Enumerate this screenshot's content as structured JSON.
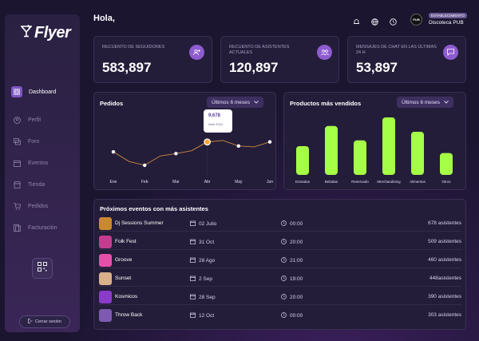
{
  "brand": {
    "name": "Flyer"
  },
  "header": {
    "greeting": "Hola,",
    "badge": "ESTABLECIMIENTO",
    "venue": "Discoteca PUB",
    "avatar_text": "PUB"
  },
  "sidebar": {
    "items": [
      {
        "label": "Dashboard",
        "icon": "grid-icon",
        "active": true
      },
      {
        "label": "Perfil",
        "icon": "user-icon",
        "active": false
      },
      {
        "label": "Foro",
        "icon": "chat-icon",
        "active": false
      },
      {
        "label": "Eventos",
        "icon": "calendar-icon",
        "active": false
      },
      {
        "label": "Tienda",
        "icon": "store-icon",
        "active": false
      },
      {
        "label": "Pedidos",
        "icon": "cart-icon",
        "active": false
      },
      {
        "label": "Facturación",
        "icon": "invoice-icon",
        "active": false
      }
    ],
    "logout": "Cerrar sesión"
  },
  "stats": [
    {
      "label": "Recuento de seguidores",
      "value": "583,897",
      "icon": "user-plus-icon"
    },
    {
      "label": "Recuento de asistentes actuales",
      "value": "120,897",
      "icon": "people-icon"
    },
    {
      "label": "Mensajes de chat en las últimas 24 h",
      "value": "53,897",
      "icon": "message-icon"
    }
  ],
  "orders": {
    "title": "Pedidos",
    "filter": "Últimos 6 meses",
    "tooltip_value": "9,678",
    "tooltip_month": "Abril 2024"
  },
  "products": {
    "title": "Productos más vendidos",
    "filter": "Últimos 6 meses"
  },
  "chart_data": [
    {
      "type": "line",
      "title": "Pedidos",
      "categories": [
        "Ene",
        "Feb",
        "Mar",
        "Abr",
        "May",
        "Jun"
      ],
      "series": [
        {
          "values": [
            0.45,
            0.22,
            0.42,
            0.62,
            0.55,
            0.62
          ]
        }
      ],
      "highlight": {
        "category": "Abr",
        "value": 9678
      },
      "grid": false
    },
    {
      "type": "bar",
      "title": "Productos más vendidos",
      "categories": [
        "Entradas",
        "Bebidas",
        "Reservado",
        "Merchandising",
        "Alimentos",
        "Otros"
      ],
      "values": [
        0.5,
        0.85,
        0.6,
        1.0,
        0.75,
        0.38
      ],
      "color": "#a6ff47"
    }
  ],
  "events": {
    "title": "Próximos eventos con más asistentes",
    "rows": [
      {
        "name": "Dj Sessions Summer",
        "date": "02 Julio",
        "time": "00:00",
        "attendees": "678 asistentes",
        "color": "#c9892f"
      },
      {
        "name": "Folk Fest",
        "date": "31 Oct",
        "time": "20:00",
        "attendees": "509 asistentes",
        "color": "#c43c8e"
      },
      {
        "name": "Groove",
        "date": "28 Ago",
        "time": "21:00",
        "attendees": "460 asistentes",
        "color": "#e54fa8"
      },
      {
        "name": "Sunset",
        "date": "2 Sep",
        "time": "19:00",
        "attendees": "448asistentes",
        "color": "#d9b08a"
      },
      {
        "name": "Kosmicos",
        "date": "28 Sep",
        "time": "20:00",
        "attendees": "390 asistentes",
        "color": "#8a3cc9"
      },
      {
        "name": "Throw Back",
        "date": "12 Oct",
        "time": "00:00",
        "attendees": "303 asistentes",
        "color": "#7d5ab0"
      }
    ]
  },
  "colors": {
    "accent": "#8e5cd0",
    "bar": "#a6ff47",
    "line": "#c98a3a"
  }
}
